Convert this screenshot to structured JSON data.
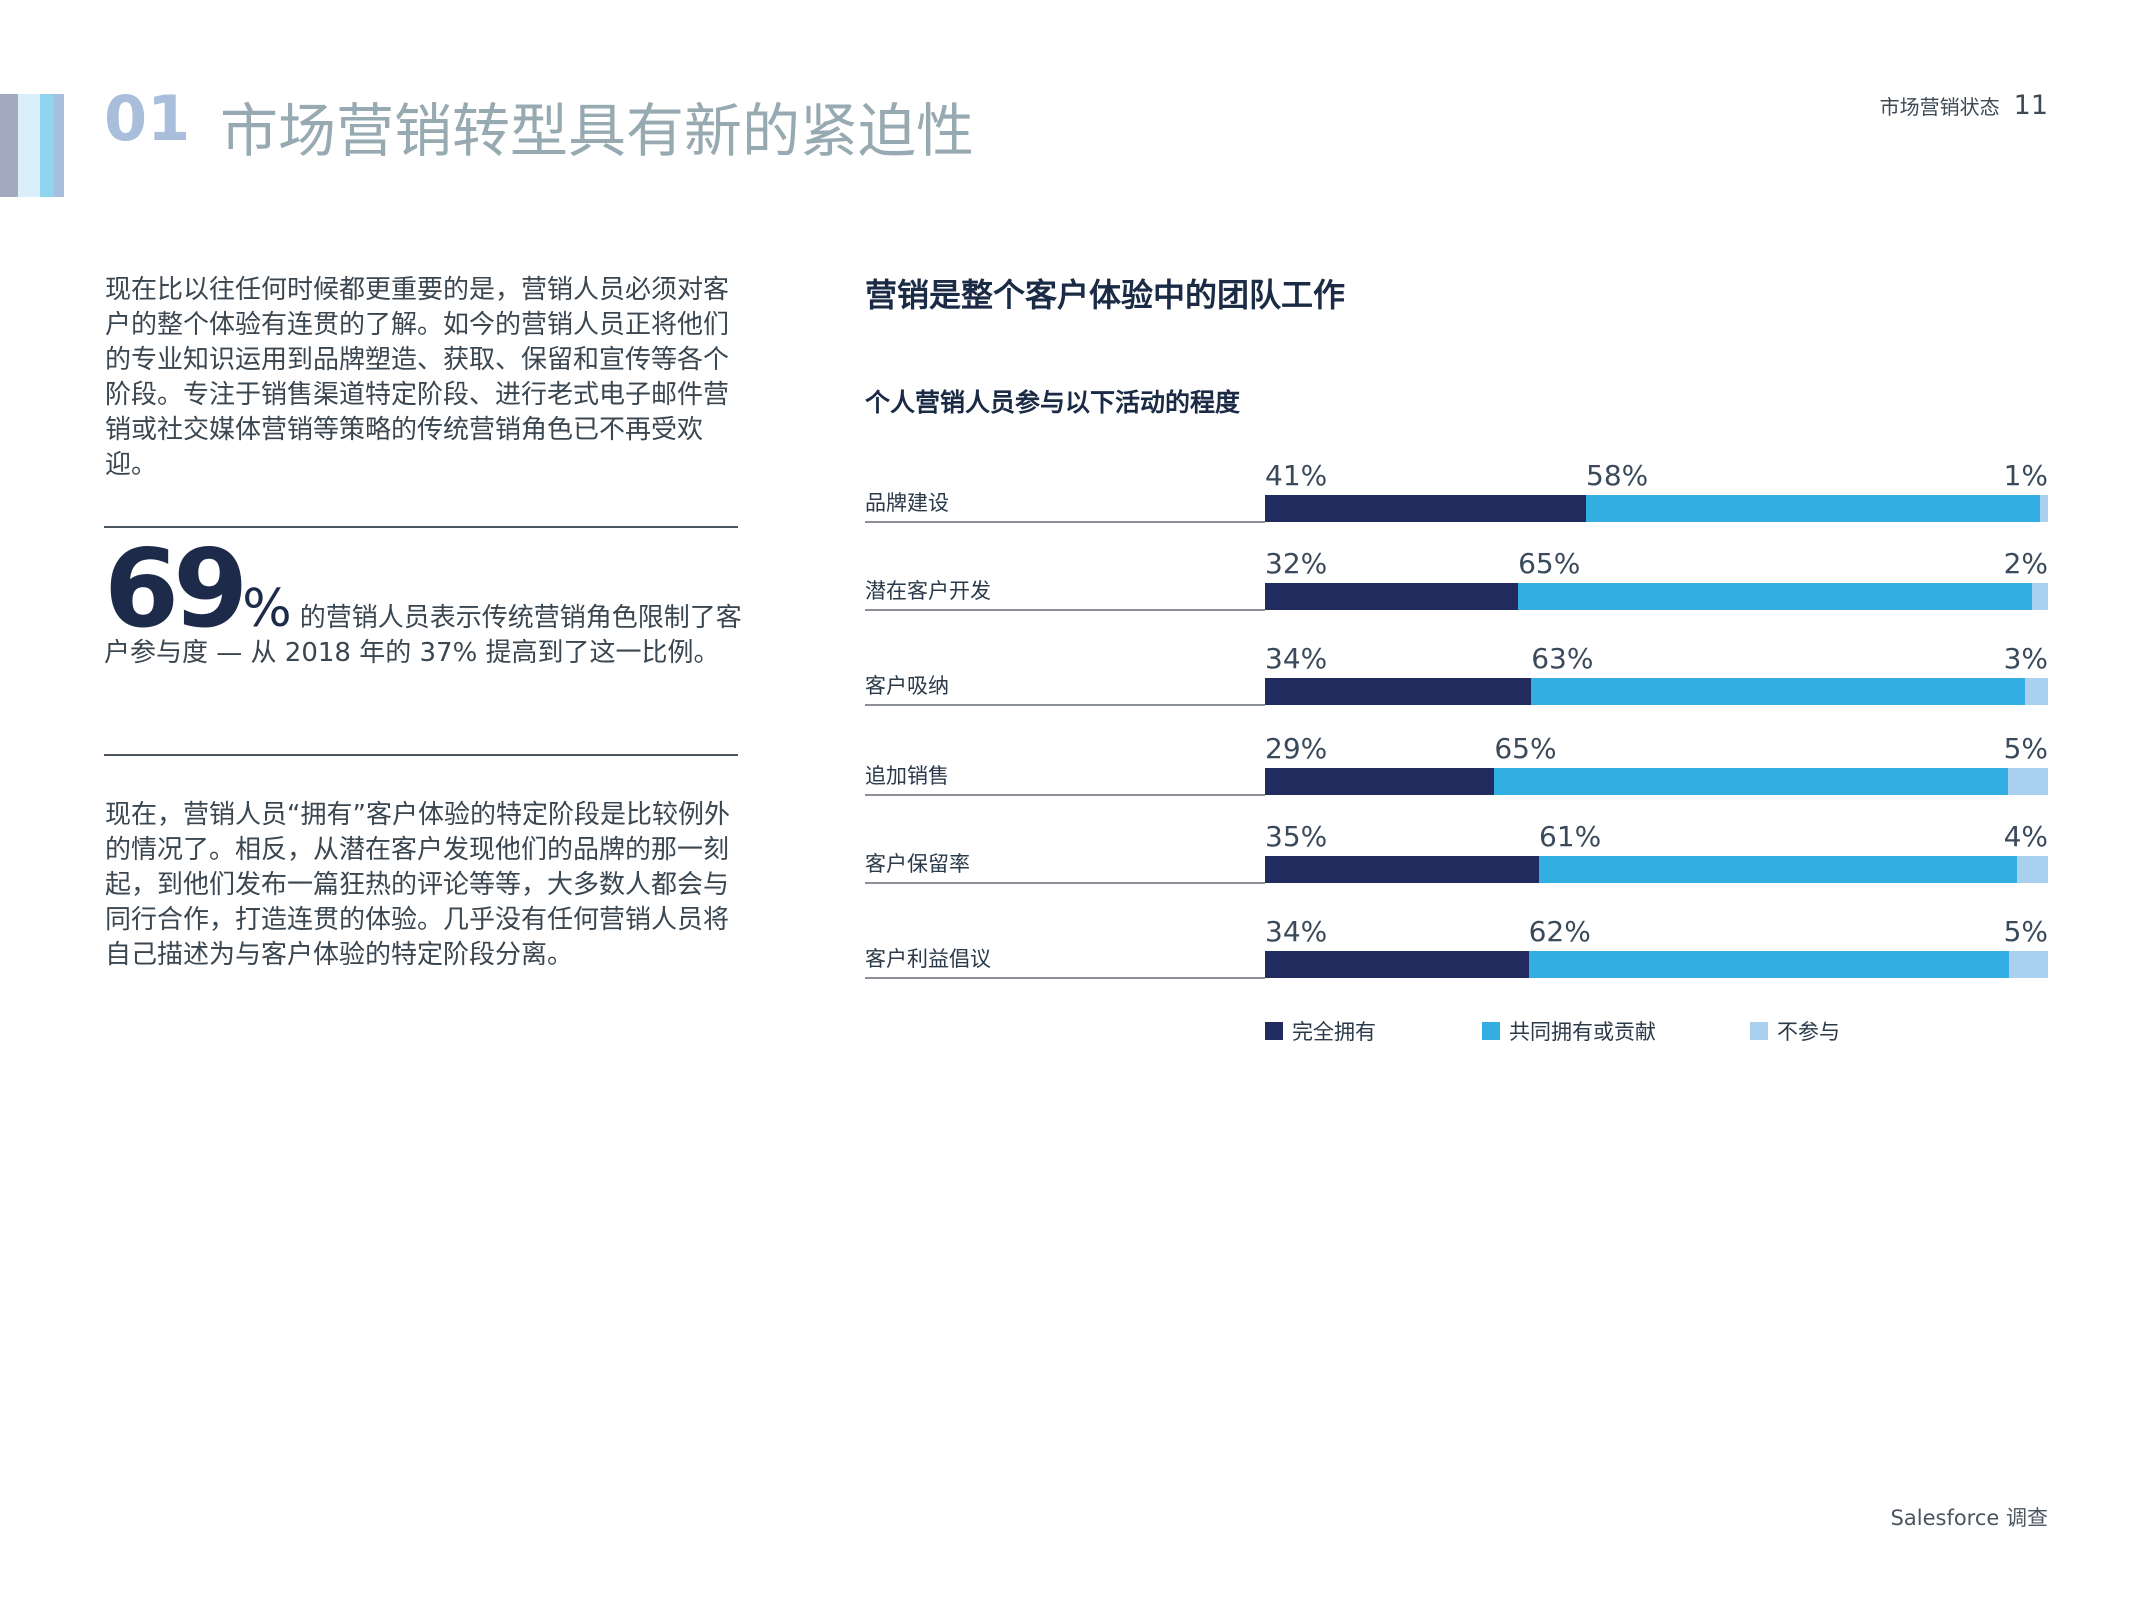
{
  "header": {
    "section_number": "01",
    "section_title": "市场营销转型具有新的紧迫性",
    "running_title": "市场营销状态",
    "page_number": "11"
  },
  "left": {
    "paragraph1": "现在比以往任何时候都更重要的是，营销人员必须对客户的整个体验有连贯的了解。如今的营销人员正将他们的专业知识运用到品牌塑造、获取、保留和宣传等各个阶段。专注于销售渠道特定阶段、进行老式电子邮件营销或社交媒体营销等策略的传统营销角色已不再受欢迎。",
    "stat_number": "69",
    "stat_unit": "%",
    "stat_text": "的营销人员表示传统营销角色限制了客户参与度 — 从 2018 年的 37% 提高到了这一比例。",
    "paragraph2": "现在，营销人员“拥有”客户体验的特定阶段是比较例外的情况了。相反，从潜在客户发现他们的品牌的那一刻起，到他们发布一篇狂热的评论等等，大多数人都会与同行合作，打造连贯的体验。几乎没有任何营销人员将自己描述为与客户体验的特定阶段分离。"
  },
  "chart_data": {
    "type": "bar",
    "orientation": "horizontal",
    "stacked": true,
    "title": "营销是整个客户体验中的团队工作",
    "subtitle": "个人营销人员参与以下活动的程度",
    "categories": [
      "品牌建设",
      "潜在客户开发",
      "客户吸纳",
      "追加销售",
      "客户保留率",
      "客户利益倡议"
    ],
    "series": [
      {
        "name": "完全拥有",
        "color": "#222b5e",
        "values": [
          41,
          32,
          34,
          29,
          35,
          34
        ]
      },
      {
        "name": "共同拥有或贡献",
        "color": "#33aee2",
        "values": [
          58,
          65,
          63,
          65,
          61,
          62
        ]
      },
      {
        "name": "不参与",
        "color": "#a9d1ef",
        "values": [
          1,
          2,
          3,
          5,
          4,
          5
        ]
      }
    ],
    "value_suffix": "%",
    "legend_position": "bottom-left",
    "grid": false
  },
  "footer": {
    "text": "Salesforce 调查"
  }
}
